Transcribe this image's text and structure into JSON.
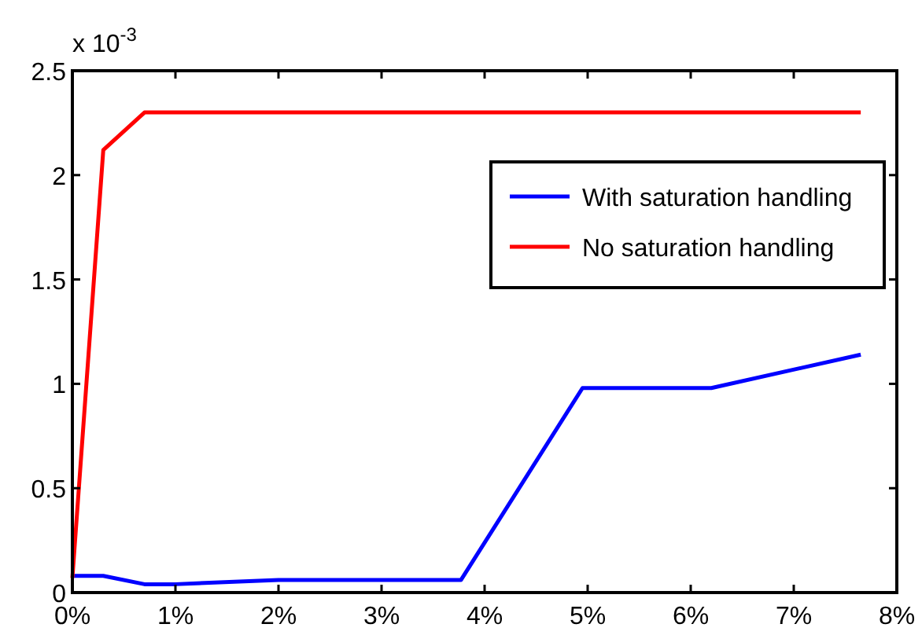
{
  "chart_data": {
    "type": "line",
    "x": [
      0,
      0.3,
      0.7,
      1.0,
      2.0,
      3.77,
      4.95,
      6.2,
      7.65
    ],
    "series": [
      {
        "name": "With saturation handling",
        "color": "#0000ff",
        "values": [
          0.08,
          0.08,
          0.04,
          0.04,
          0.06,
          0.06,
          0.98,
          0.98,
          1.14
        ]
      },
      {
        "name": "No saturation handling",
        "color": "#ff0000",
        "x": [
          0,
          0.3,
          0.7,
          7.65
        ],
        "values": [
          0.07,
          2.12,
          2.3,
          2.3
        ]
      }
    ],
    "xlim": [
      0,
      8
    ],
    "xticks": [
      {
        "value": 0,
        "label": "0%"
      },
      {
        "value": 1,
        "label": "1%"
      },
      {
        "value": 2,
        "label": "2%"
      },
      {
        "value": 3,
        "label": "3%"
      },
      {
        "value": 4,
        "label": "4%"
      },
      {
        "value": 5,
        "label": "5%"
      },
      {
        "value": 6,
        "label": "6%"
      },
      {
        "value": 7,
        "label": "7%"
      },
      {
        "value": 8,
        "label": "8%"
      }
    ],
    "ylim": [
      0,
      2.5
    ],
    "yticks": [
      0,
      0.5,
      1,
      1.5,
      2,
      2.5
    ],
    "annotations": [
      "x 10$^{-3}$"
    ],
    "legend": "top right",
    "grid": false
  }
}
